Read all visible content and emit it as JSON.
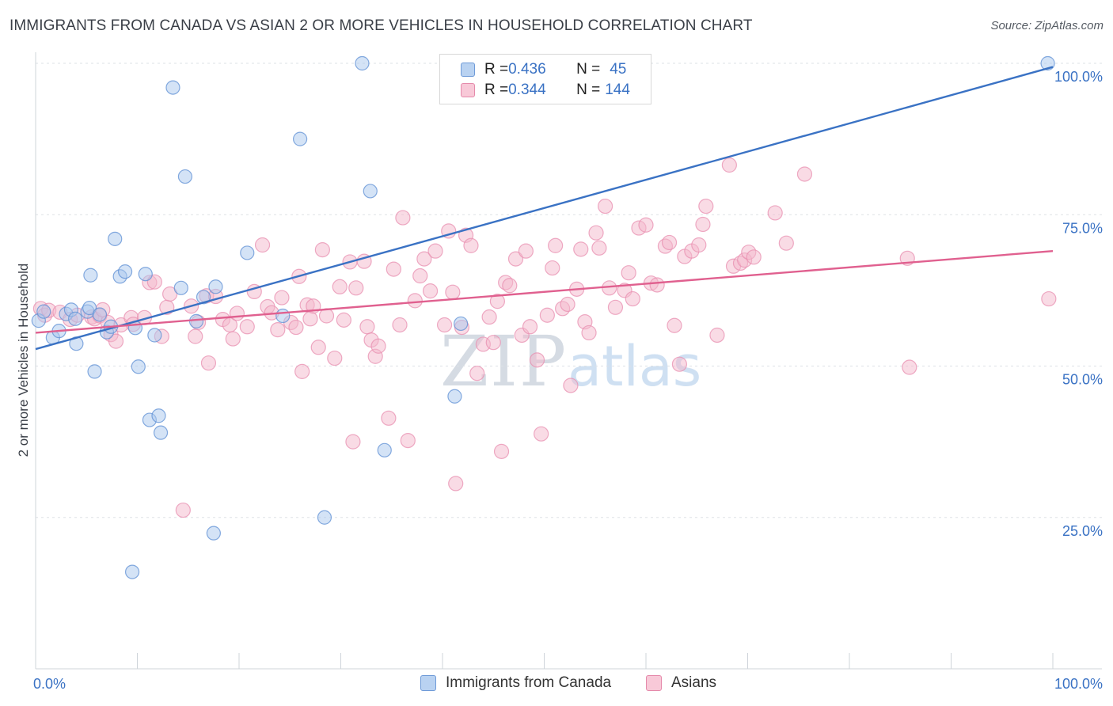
{
  "title": "IMMIGRANTS FROM CANADA VS ASIAN 2 OR MORE VEHICLES IN HOUSEHOLD CORRELATION CHART",
  "source": "Source: ZipAtlas.com",
  "watermark": {
    "zip": "ZIP",
    "atlas": "atlas"
  },
  "colors": {
    "blue": "#3a72c4",
    "blue_fill": "#a9c8ee",
    "pink": "#e0608f",
    "pink_fill": "#f4b7cb",
    "grid": "#dde1e6"
  },
  "legend": {
    "rows": [
      {
        "r_label": "R = ",
        "r_value": "0.436",
        "n_label": "N = ",
        "n_value": "45"
      },
      {
        "r_label": "R = ",
        "r_value": "0.344",
        "n_label": "N = ",
        "n_value": "144"
      }
    ]
  },
  "chart_data": {
    "type": "scatter",
    "title": "IMMIGRANTS FROM CANADA VS ASIAN 2 OR MORE VEHICLES IN HOUSEHOLD CORRELATION CHART",
    "xlabel": "",
    "ylabel": "2 or more Vehicles in Household",
    "xlim": [
      0,
      100
    ],
    "ylim": [
      0,
      100
    ],
    "x_tick_labels": [
      "0.0%",
      "100.0%"
    ],
    "y_tick_labels": [
      "25.0%",
      "50.0%",
      "75.0%",
      "100.0%"
    ],
    "y_ticks": [
      25,
      50,
      75,
      100
    ],
    "grid": true,
    "legend_position": "top-center",
    "series": [
      {
        "name": "Immigrants from Canada",
        "color": "#3a72c4",
        "trend": [
          [
            0,
            52.8
          ],
          [
            100,
            99.4
          ]
        ],
        "points": [
          [
            0.3,
            57.5
          ],
          [
            0.8,
            59.0
          ],
          [
            1.7,
            54.7
          ],
          [
            2.3,
            55.8
          ],
          [
            3.0,
            58.6
          ],
          [
            3.5,
            59.3
          ],
          [
            3.9,
            57.8
          ],
          [
            4.0,
            53.7
          ],
          [
            5.1,
            59.0
          ],
          [
            5.3,
            59.6
          ],
          [
            5.4,
            65.0
          ],
          [
            5.8,
            49.1
          ],
          [
            6.3,
            58.5
          ],
          [
            7.0,
            55.6
          ],
          [
            7.4,
            56.5
          ],
          [
            7.8,
            71.0
          ],
          [
            8.3,
            64.8
          ],
          [
            8.8,
            65.6
          ],
          [
            9.5,
            16.0
          ],
          [
            9.8,
            56.3
          ],
          [
            10.1,
            49.9
          ],
          [
            10.8,
            65.2
          ],
          [
            11.2,
            41.1
          ],
          [
            11.7,
            55.1
          ],
          [
            12.1,
            41.8
          ],
          [
            12.3,
            39.0
          ],
          [
            13.5,
            96.0
          ],
          [
            14.3,
            62.9
          ],
          [
            14.7,
            81.3
          ],
          [
            15.8,
            57.4
          ],
          [
            16.5,
            61.4
          ],
          [
            17.5,
            22.4
          ],
          [
            17.7,
            63.1
          ],
          [
            20.8,
            68.7
          ],
          [
            24.3,
            58.3
          ],
          [
            26.0,
            87.5
          ],
          [
            28.4,
            25.0
          ],
          [
            32.1,
            100.0
          ],
          [
            32.9,
            78.9
          ],
          [
            34.3,
            36.1
          ],
          [
            41.2,
            45.0
          ],
          [
            41.8,
            57.0
          ],
          [
            99.5,
            100.0
          ]
        ]
      },
      {
        "name": "Asians",
        "color": "#e0608f",
        "trend": [
          [
            0,
            55.5
          ],
          [
            100,
            69.0
          ]
        ],
        "points": [
          [
            0.5,
            59.5
          ],
          [
            0.9,
            58.4
          ],
          [
            1.3,
            59.2
          ],
          [
            2.4,
            58.9
          ],
          [
            3.4,
            57.7
          ],
          [
            4.1,
            58.4
          ],
          [
            5.5,
            58.1
          ],
          [
            5.8,
            57.8
          ],
          [
            6.3,
            58.3
          ],
          [
            6.6,
            59.3
          ],
          [
            7.1,
            57.2
          ],
          [
            7.4,
            55.2
          ],
          [
            7.9,
            54.1
          ],
          [
            8.4,
            56.8
          ],
          [
            9.4,
            58.0
          ],
          [
            9.6,
            56.9
          ],
          [
            10.7,
            58.0
          ],
          [
            11.2,
            63.8
          ],
          [
            11.7,
            63.9
          ],
          [
            12.4,
            54.9
          ],
          [
            12.9,
            59.7
          ],
          [
            13.2,
            61.9
          ],
          [
            14.5,
            26.2
          ],
          [
            15.3,
            59.9
          ],
          [
            15.7,
            54.9
          ],
          [
            16.0,
            57.2
          ],
          [
            16.8,
            61.6
          ],
          [
            17.0,
            50.5
          ],
          [
            17.7,
            61.5
          ],
          [
            18.4,
            57.7
          ],
          [
            19.1,
            56.8
          ],
          [
            19.4,
            54.5
          ],
          [
            19.8,
            58.7
          ],
          [
            20.8,
            56.5
          ],
          [
            21.5,
            62.3
          ],
          [
            22.3,
            70.0
          ],
          [
            22.8,
            59.8
          ],
          [
            23.2,
            58.8
          ],
          [
            23.8,
            56.0
          ],
          [
            24.2,
            61.3
          ],
          [
            25.1,
            57.2
          ],
          [
            25.6,
            56.4
          ],
          [
            25.9,
            64.8
          ],
          [
            26.2,
            49.1
          ],
          [
            26.7,
            60.1
          ],
          [
            27.0,
            57.8
          ],
          [
            27.3,
            59.9
          ],
          [
            27.8,
            53.1
          ],
          [
            28.2,
            69.2
          ],
          [
            28.6,
            58.3
          ],
          [
            29.4,
            51.3
          ],
          [
            29.9,
            63.1
          ],
          [
            30.3,
            57.6
          ],
          [
            30.9,
            67.2
          ],
          [
            31.2,
            37.5
          ],
          [
            31.5,
            62.9
          ],
          [
            32.3,
            67.3
          ],
          [
            32.6,
            56.5
          ],
          [
            33.0,
            54.3
          ],
          [
            33.4,
            51.6
          ],
          [
            33.7,
            53.3
          ],
          [
            34.7,
            41.4
          ],
          [
            35.2,
            66.0
          ],
          [
            35.8,
            56.8
          ],
          [
            36.1,
            74.5
          ],
          [
            36.6,
            37.7
          ],
          [
            37.3,
            60.8
          ],
          [
            37.8,
            64.9
          ],
          [
            38.2,
            67.7
          ],
          [
            38.8,
            62.4
          ],
          [
            39.3,
            69.0
          ],
          [
            40.2,
            56.8
          ],
          [
            40.6,
            72.3
          ],
          [
            41.0,
            62.2
          ],
          [
            41.3,
            30.6
          ],
          [
            41.9,
            56.4
          ],
          [
            42.3,
            71.6
          ],
          [
            42.8,
            69.9
          ],
          [
            43.4,
            48.8
          ],
          [
            44.0,
            53.6
          ],
          [
            44.6,
            58.1
          ],
          [
            45.0,
            53.9
          ],
          [
            45.4,
            60.7
          ],
          [
            45.8,
            35.9
          ],
          [
            46.2,
            63.8
          ],
          [
            46.6,
            63.3
          ],
          [
            47.2,
            67.7
          ],
          [
            47.8,
            55.1
          ],
          [
            48.2,
            69.0
          ],
          [
            48.6,
            56.5
          ],
          [
            49.3,
            51.0
          ],
          [
            49.7,
            38.8
          ],
          [
            50.3,
            58.4
          ],
          [
            50.8,
            66.2
          ],
          [
            51.1,
            69.9
          ],
          [
            51.8,
            59.5
          ],
          [
            52.3,
            60.2
          ],
          [
            52.6,
            46.8
          ],
          [
            53.2,
            62.7
          ],
          [
            53.6,
            69.3
          ],
          [
            54.0,
            57.3
          ],
          [
            54.4,
            55.5
          ],
          [
            55.1,
            72.0
          ],
          [
            55.4,
            69.5
          ],
          [
            56.0,
            76.4
          ],
          [
            56.4,
            62.9
          ],
          [
            57.0,
            59.7
          ],
          [
            57.9,
            62.5
          ],
          [
            58.3,
            65.4
          ],
          [
            58.7,
            61.1
          ],
          [
            59.3,
            72.8
          ],
          [
            60.0,
            73.3
          ],
          [
            60.5,
            63.7
          ],
          [
            61.1,
            63.4
          ],
          [
            61.9,
            69.8
          ],
          [
            62.3,
            70.4
          ],
          [
            62.8,
            56.7
          ],
          [
            63.3,
            50.3
          ],
          [
            63.8,
            68.1
          ],
          [
            64.5,
            69.0
          ],
          [
            65.2,
            70.0
          ],
          [
            65.6,
            73.4
          ],
          [
            65.9,
            76.4
          ],
          [
            67.0,
            55.1
          ],
          [
            68.2,
            83.2
          ],
          [
            68.6,
            66.5
          ],
          [
            69.3,
            67.0
          ],
          [
            69.7,
            67.5
          ],
          [
            70.1,
            68.8
          ],
          [
            70.6,
            68.0
          ],
          [
            72.7,
            75.3
          ],
          [
            73.8,
            70.3
          ],
          [
            75.6,
            81.7
          ],
          [
            85.7,
            67.8
          ],
          [
            85.9,
            49.8
          ],
          [
            99.6,
            61.1
          ]
        ]
      }
    ]
  }
}
